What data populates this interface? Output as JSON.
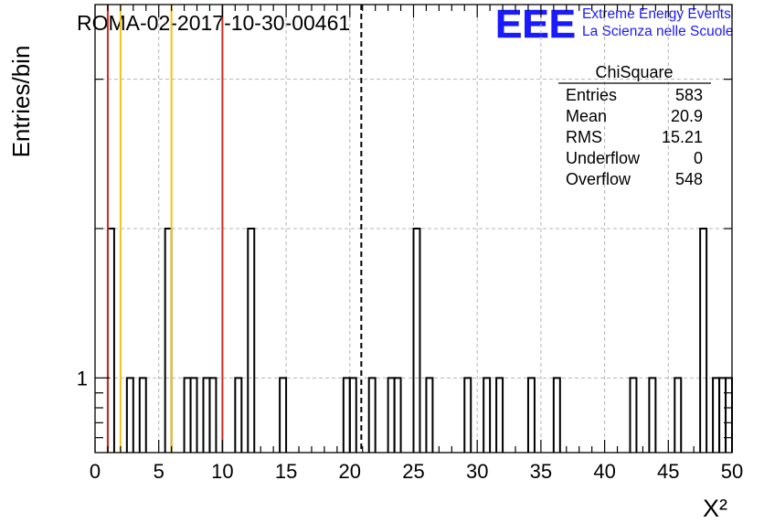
{
  "chart_data": {
    "type": "bar",
    "title": "ROMA-02-2017-10-30-00461",
    "xlabel": "X²",
    "ylabel": "Entries/bin",
    "xlim": [
      0,
      50
    ],
    "ylim": [
      0.5,
      3.5
    ],
    "bin_width": 0.5,
    "x_ticks": [
      "0",
      "5",
      "10",
      "15",
      "20",
      "25",
      "30",
      "35",
      "40",
      "45",
      "50"
    ],
    "y_ticks": [
      "1"
    ],
    "bins": [
      {
        "x": 1.0,
        "y": 2
      },
      {
        "x": 2.5,
        "y": 1
      },
      {
        "x": 3.5,
        "y": 1
      },
      {
        "x": 5.5,
        "y": 2
      },
      {
        "x": 7.0,
        "y": 1
      },
      {
        "x": 7.5,
        "y": 1
      },
      {
        "x": 8.5,
        "y": 1
      },
      {
        "x": 9.0,
        "y": 1
      },
      {
        "x": 11.0,
        "y": 1
      },
      {
        "x": 12.0,
        "y": 2
      },
      {
        "x": 14.5,
        "y": 1
      },
      {
        "x": 19.5,
        "y": 1
      },
      {
        "x": 20.0,
        "y": 1
      },
      {
        "x": 21.5,
        "y": 1
      },
      {
        "x": 23.0,
        "y": 1
      },
      {
        "x": 23.5,
        "y": 1
      },
      {
        "x": 25.0,
        "y": 2
      },
      {
        "x": 26.0,
        "y": 1
      },
      {
        "x": 29.0,
        "y": 1
      },
      {
        "x": 30.5,
        "y": 1
      },
      {
        "x": 31.5,
        "y": 1
      },
      {
        "x": 34.0,
        "y": 1
      },
      {
        "x": 36.0,
        "y": 1
      },
      {
        "x": 42.0,
        "y": 1
      },
      {
        "x": 43.5,
        "y": 1
      },
      {
        "x": 45.5,
        "y": 1
      },
      {
        "x": 47.5,
        "y": 2
      },
      {
        "x": 48.5,
        "y": 1
      },
      {
        "x": 49.0,
        "y": 1
      },
      {
        "x": 49.5,
        "y": 1
      }
    ],
    "vertical_lines": [
      {
        "x": 1,
        "color": "#d42a1f"
      },
      {
        "x": 2,
        "color": "#f2c21b"
      },
      {
        "x": 6,
        "color": "#f2c21b"
      },
      {
        "x": 10,
        "color": "#d42a1f"
      }
    ],
    "mean_line": {
      "x": 20.9,
      "style": "dashed",
      "color": "#000000"
    },
    "grid": true,
    "stats_box": {
      "title": "ChiSquare",
      "placement": "top-right",
      "rows": [
        {
          "label": "Entries",
          "value": "583"
        },
        {
          "label": "Mean",
          "value": "20.9"
        },
        {
          "label": "RMS",
          "value": "15.21"
        },
        {
          "label": "Underflow",
          "value": "0"
        },
        {
          "label": "Overflow",
          "value": "548"
        }
      ]
    }
  },
  "logo": {
    "letters": "EEE",
    "line1": "Extreme Energy Events",
    "line2": "La Scienza nelle Scuole",
    "color": "#1a1aff"
  }
}
